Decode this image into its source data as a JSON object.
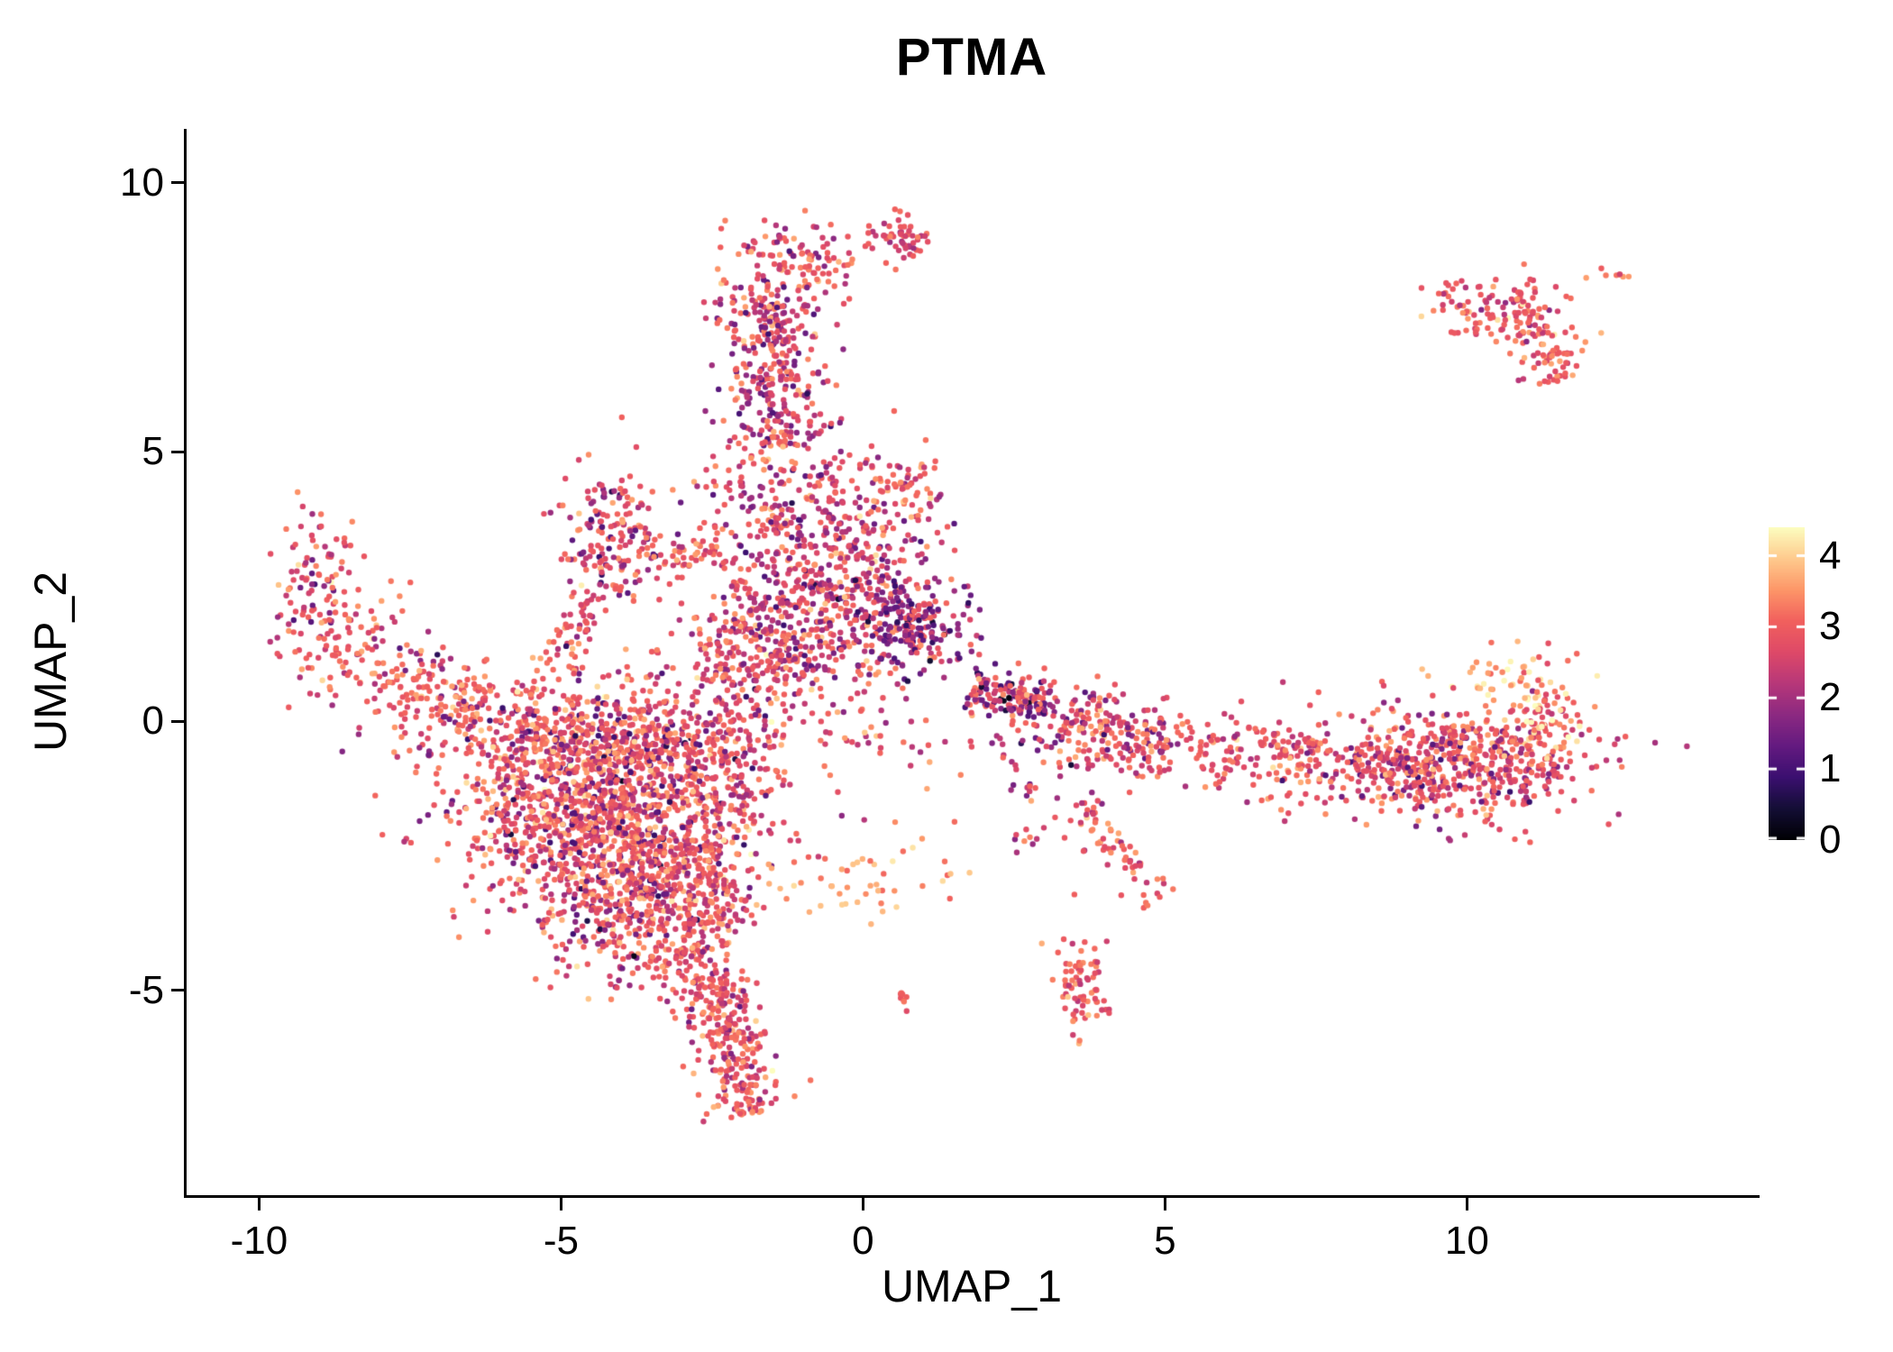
{
  "chart_data": {
    "type": "scatter",
    "title": "PTMA",
    "xlabel": "UMAP_1",
    "ylabel": "UMAP_2",
    "xlim": [
      -11.2,
      14.8
    ],
    "ylim": [
      -8.8,
      11.0
    ],
    "xticks": [
      -10,
      -5,
      0,
      5,
      10
    ],
    "yticks": [
      -5,
      0,
      5,
      10
    ],
    "grid": false,
    "background": "#ffffff",
    "legend_position": "right",
    "point_size": 3.2,
    "seed": 42,
    "colorbar": {
      "min": 0,
      "max": 4.4,
      "ticks": [
        0,
        1,
        2,
        3,
        4
      ],
      "palette_name": "magma",
      "palette_stops": [
        [
          0.0,
          "#000004"
        ],
        [
          0.1,
          "#140e36"
        ],
        [
          0.2,
          "#3b0f70"
        ],
        [
          0.3,
          "#641a80"
        ],
        [
          0.4,
          "#8c2981"
        ],
        [
          0.5,
          "#b73779"
        ],
        [
          0.6,
          "#de4968"
        ],
        [
          0.7,
          "#f1605d"
        ],
        [
          0.8,
          "#fd9668"
        ],
        [
          0.9,
          "#feca8d"
        ],
        [
          1.0,
          "#fcfdbf"
        ]
      ]
    },
    "clusters": [
      {
        "name": "top-band-upper",
        "shape": "gauss",
        "n": 140,
        "cx": -1.15,
        "cy": 8.45,
        "sx": 0.55,
        "sy": 0.45,
        "expr": [
          {
            "m": 3.0,
            "s": 0.45,
            "w": 0.75
          },
          {
            "m": 1.9,
            "s": 0.4,
            "w": 0.25
          }
        ]
      },
      {
        "name": "top-hook",
        "shape": "gauss",
        "n": 55,
        "cx": 0.55,
        "cy": 8.95,
        "sx": 0.3,
        "sy": 0.22,
        "expr": [
          {
            "m": 2.9,
            "s": 0.4,
            "w": 0.8
          },
          {
            "m": 2.0,
            "s": 0.3,
            "w": 0.2
          }
        ]
      },
      {
        "name": "top-band-mid",
        "shape": "line",
        "n": 310,
        "x1": -1.55,
        "y1": 7.9,
        "x2": -1.4,
        "y2": 5.1,
        "w": 0.42,
        "expr": [
          {
            "m": 2.0,
            "s": 0.5,
            "w": 0.55
          },
          {
            "m": 3.1,
            "s": 0.4,
            "w": 0.45
          }
        ]
      },
      {
        "name": "band-flare",
        "shape": "gauss",
        "n": 170,
        "cx": -1.15,
        "cy": 4.3,
        "sx": 0.75,
        "sy": 0.5,
        "expr": [
          {
            "m": 2.2,
            "s": 0.6,
            "w": 0.55
          },
          {
            "m": 3.15,
            "s": 0.4,
            "w": 0.45
          }
        ]
      },
      {
        "name": "band-right-knob",
        "shape": "gauss",
        "n": 60,
        "cx": 0.7,
        "cy": 4.3,
        "sx": 0.33,
        "sy": 0.33,
        "expr": [
          {
            "m": 3.0,
            "s": 0.4,
            "w": 0.85
          },
          {
            "m": 2.0,
            "s": 0.3,
            "w": 0.15
          }
        ]
      },
      {
        "name": "central-main",
        "shape": "gauss",
        "n": 540,
        "cx": -0.7,
        "cy": 2.0,
        "sx": 0.95,
        "sy": 0.8,
        "expr": [
          {
            "m": 2.0,
            "s": 0.55,
            "w": 0.5
          },
          {
            "m": 3.0,
            "s": 0.45,
            "w": 0.5
          }
        ]
      },
      {
        "name": "central-dark-knot",
        "shape": "gauss",
        "n": 170,
        "cx": 0.8,
        "cy": 1.8,
        "sx": 0.45,
        "sy": 0.42,
        "expr": [
          {
            "m": 1.5,
            "s": 0.5,
            "w": 0.7
          },
          {
            "m": 2.8,
            "s": 0.4,
            "w": 0.3
          }
        ]
      },
      {
        "name": "central-upper",
        "shape": "gauss",
        "n": 110,
        "cx": -0.6,
        "cy": 3.35,
        "sx": 0.8,
        "sy": 0.4,
        "expr": [
          {
            "m": 2.4,
            "s": 0.65,
            "w": 1
          }
        ]
      },
      {
        "name": "central-left-bridge",
        "shape": "line",
        "n": 140,
        "x1": -2.6,
        "y1": 0.7,
        "x2": -1.3,
        "y2": 1.7,
        "w": 0.5,
        "expr": [
          {
            "m": 2.6,
            "s": 0.6,
            "w": 1
          }
        ]
      },
      {
        "name": "triangle-cluster",
        "shape": "gauss",
        "n": 175,
        "cx": -4.1,
        "cy": 3.3,
        "sx": 0.45,
        "sy": 0.62,
        "expr": [
          {
            "m": 2.8,
            "s": 0.5,
            "w": 0.85
          },
          {
            "m": 1.3,
            "s": 0.4,
            "w": 0.15
          }
        ]
      },
      {
        "name": "triangle-bridge",
        "shape": "line",
        "n": 45,
        "x1": -3.6,
        "y1": 2.95,
        "x2": -2.35,
        "y2": 3.2,
        "w": 0.15,
        "expr": [
          {
            "m": 3.0,
            "s": 0.4,
            "w": 1
          }
        ]
      },
      {
        "name": "triangle-stem",
        "shape": "line",
        "n": 50,
        "x1": -4.5,
        "y1": 2.4,
        "x2": -4.9,
        "y2": 1.0,
        "w": 0.25,
        "expr": [
          {
            "m": 2.8,
            "s": 0.5,
            "w": 1
          }
        ]
      },
      {
        "name": "left-arm-tip",
        "shape": "gauss",
        "n": 90,
        "cx": -9.1,
        "cy": 2.3,
        "sx": 0.35,
        "sy": 0.75,
        "expr": [
          {
            "m": 2.8,
            "s": 0.5,
            "w": 0.8
          },
          {
            "m": 1.5,
            "s": 0.4,
            "w": 0.2
          }
        ]
      },
      {
        "name": "left-arm-outliers",
        "shape": "gauss",
        "n": 12,
        "cx": -8.9,
        "cy": 3.2,
        "sx": 0.3,
        "sy": 0.18,
        "expr": [
          {
            "m": 3.0,
            "s": 0.4,
            "w": 1
          }
        ]
      },
      {
        "name": "left-arm-mid",
        "shape": "gauss",
        "n": 90,
        "cx": -8.35,
        "cy": 1.4,
        "sx": 0.45,
        "sy": 0.5,
        "expr": [
          {
            "m": 3.0,
            "s": 0.5,
            "w": 1
          }
        ]
      },
      {
        "name": "left-arm-joint",
        "shape": "line",
        "n": 130,
        "x1": -7.9,
        "y1": 0.9,
        "x2": -6.3,
        "y2": 0.2,
        "w": 0.4,
        "expr": [
          {
            "m": 3.1,
            "s": 0.4,
            "w": 0.9
          },
          {
            "m": 1.8,
            "s": 0.4,
            "w": 0.1
          }
        ]
      },
      {
        "name": "blob-upper-band",
        "shape": "gauss",
        "n": 620,
        "cx": -4.2,
        "cy": -0.25,
        "sx": 1.5,
        "sy": 0.55,
        "expr": [
          {
            "m": 3.0,
            "s": 0.5,
            "w": 0.8
          },
          {
            "m": 1.6,
            "s": 0.5,
            "w": 0.2
          }
        ]
      },
      {
        "name": "blob-core",
        "shape": "gauss",
        "n": 1150,
        "cx": -4.4,
        "cy": -1.7,
        "sx": 1.15,
        "sy": 0.9,
        "expr": [
          {
            "m": 3.0,
            "s": 0.5,
            "w": 0.78
          },
          {
            "m": 1.7,
            "s": 0.5,
            "w": 0.22
          }
        ]
      },
      {
        "name": "blob-lower",
        "shape": "gauss",
        "n": 430,
        "cx": -3.7,
        "cy": -3.4,
        "sx": 0.8,
        "sy": 0.7,
        "expr": [
          {
            "m": 2.9,
            "s": 0.5,
            "w": 0.8
          },
          {
            "m": 1.8,
            "s": 0.5,
            "w": 0.2
          }
        ]
      },
      {
        "name": "blob-right-spur",
        "shape": "line",
        "n": 130,
        "x1": -2.9,
        "y1": -2.2,
        "x2": -2.2,
        "y2": -3.8,
        "w": 0.35,
        "expr": [
          {
            "m": 2.8,
            "s": 0.5,
            "w": 1
          }
        ]
      },
      {
        "name": "blob-right-edge",
        "shape": "gauss",
        "n": 130,
        "cx": -2.3,
        "cy": -0.9,
        "sx": 0.5,
        "sy": 0.8,
        "expr": [
          {
            "m": 2.6,
            "s": 0.6,
            "w": 1
          }
        ]
      },
      {
        "name": "tail-neck",
        "shape": "gauss",
        "n": 80,
        "cx": -2.9,
        "cy": -4.5,
        "sx": 0.45,
        "sy": 0.4,
        "expr": [
          {
            "m": 2.9,
            "s": 0.5,
            "w": 1
          }
        ]
      },
      {
        "name": "tail",
        "shape": "line",
        "n": 270,
        "x1": -2.55,
        "y1": -4.7,
        "x2": -1.85,
        "y2": -7.3,
        "w": 0.3,
        "expr": [
          {
            "m": 2.9,
            "s": 0.45,
            "w": 0.9
          },
          {
            "m": 1.9,
            "s": 0.3,
            "w": 0.1
          }
        ]
      },
      {
        "name": "center-bottom-light",
        "shape": "gauss",
        "n": 48,
        "cx": 0.0,
        "cy": -2.95,
        "sx": 0.95,
        "sy": 0.35,
        "expr": [
          {
            "m": 3.6,
            "s": 0.35,
            "w": 1
          }
        ]
      },
      {
        "name": "below-dots",
        "shape": "gauss",
        "n": 8,
        "cx": 0.65,
        "cy": -5.15,
        "sx": 0.12,
        "sy": 0.15,
        "expr": [
          {
            "m": 3.2,
            "s": 0.3,
            "w": 1
          }
        ]
      },
      {
        "name": "band-start-dark",
        "shape": "line",
        "n": 175,
        "x1": 1.75,
        "y1": 0.55,
        "x2": 3.2,
        "y2": 0.25,
        "w": 0.28,
        "expr": [
          {
            "m": 1.4,
            "s": 0.55,
            "w": 0.55
          },
          {
            "m": 2.9,
            "s": 0.4,
            "w": 0.45
          }
        ]
      },
      {
        "name": "band-mid",
        "shape": "line",
        "n": 210,
        "x1": 3.3,
        "y1": 0.1,
        "x2": 5.2,
        "y2": -0.55,
        "w": 0.35,
        "expr": [
          {
            "m": 2.4,
            "s": 0.65,
            "w": 0.6
          },
          {
            "m": 3.1,
            "s": 0.4,
            "w": 0.4
          }
        ]
      },
      {
        "name": "band-bridge",
        "shape": "line",
        "n": 140,
        "x1": 5.3,
        "y1": -0.6,
        "x2": 7.6,
        "y2": -0.7,
        "w": 0.35,
        "expr": [
          {
            "m": 2.8,
            "s": 0.5,
            "w": 1
          }
        ]
      },
      {
        "name": "band-below-dots",
        "shape": "gauss",
        "n": 30,
        "cx": 3.0,
        "cy": -1.0,
        "sx": 0.3,
        "sy": 0.4,
        "expr": [
          {
            "m": 2.2,
            "s": 0.7,
            "w": 1
          }
        ]
      },
      {
        "name": "right-blob",
        "shape": "gauss",
        "n": 640,
        "cx": 9.6,
        "cy": -0.75,
        "sx": 1.15,
        "sy": 0.5,
        "expr": [
          {
            "m": 2.9,
            "s": 0.45,
            "w": 0.85
          },
          {
            "m": 1.6,
            "s": 0.4,
            "w": 0.15
          }
        ]
      },
      {
        "name": "right-tip",
        "shape": "gauss",
        "n": 90,
        "cx": 11.3,
        "cy": -0.05,
        "sx": 0.3,
        "sy": 0.5,
        "expr": [
          {
            "m": 3.0,
            "s": 0.4,
            "w": 0.7
          },
          {
            "m": 4.2,
            "s": 0.2,
            "w": 0.3
          }
        ]
      },
      {
        "name": "right-above-light",
        "shape": "gauss",
        "n": 40,
        "cx": 10.6,
        "cy": 0.75,
        "sx": 0.6,
        "sy": 0.28,
        "expr": [
          {
            "m": 3.6,
            "s": 0.4,
            "w": 1
          }
        ]
      },
      {
        "name": "topright-cluster",
        "shape": "gauss",
        "n": 115,
        "cx": 10.6,
        "cy": 7.6,
        "sx": 0.55,
        "sy": 0.35,
        "expr": [
          {
            "m": 2.9,
            "s": 0.5,
            "w": 1
          }
        ]
      },
      {
        "name": "topright-tail",
        "shape": "line",
        "n": 60,
        "x1": 11.15,
        "y1": 7.3,
        "x2": 11.5,
        "y2": 6.3,
        "w": 0.25,
        "expr": [
          {
            "m": 3.0,
            "s": 0.5,
            "w": 1
          }
        ]
      },
      {
        "name": "topright-outlier-a",
        "shape": "gauss",
        "n": 8,
        "cx": 12.3,
        "cy": 8.2,
        "sx": 0.2,
        "sy": 0.15,
        "expr": [
          {
            "m": 3.2,
            "s": 0.3,
            "w": 1
          }
        ]
      },
      {
        "name": "topright-outlier-b",
        "shape": "gauss",
        "n": 10,
        "cx": 9.6,
        "cy": 7.9,
        "sx": 0.3,
        "sy": 0.2,
        "expr": [
          {
            "m": 2.8,
            "s": 0.4,
            "w": 1
          }
        ]
      },
      {
        "name": "diag-strand",
        "shape": "line",
        "n": 65,
        "x1": 3.5,
        "y1": -1.5,
        "x2": 4.9,
        "y2": -3.3,
        "w": 0.18,
        "expr": [
          {
            "m": 3.0,
            "s": 0.4,
            "w": 0.9
          },
          {
            "m": 2.0,
            "s": 0.3,
            "w": 0.1
          }
        ]
      },
      {
        "name": "diag-knot",
        "shape": "gauss",
        "n": 75,
        "cx": 3.55,
        "cy": -4.9,
        "sx": 0.22,
        "sy": 0.45,
        "expr": [
          {
            "m": 2.9,
            "s": 0.45,
            "w": 1
          }
        ]
      },
      {
        "name": "diag-extra-dots",
        "shape": "gauss",
        "n": 10,
        "cx": 2.8,
        "cy": -2.2,
        "sx": 0.25,
        "sy": 0.3,
        "expr": [
          {
            "m": 2.6,
            "s": 0.5,
            "w": 1
          }
        ]
      },
      {
        "name": "center-gap-sparse",
        "shape": "gauss",
        "n": 35,
        "cx": 0.3,
        "cy": -0.6,
        "sx": 1.0,
        "sy": 0.5,
        "expr": [
          {
            "m": 2.8,
            "s": 0.6,
            "w": 1
          }
        ]
      }
    ]
  }
}
